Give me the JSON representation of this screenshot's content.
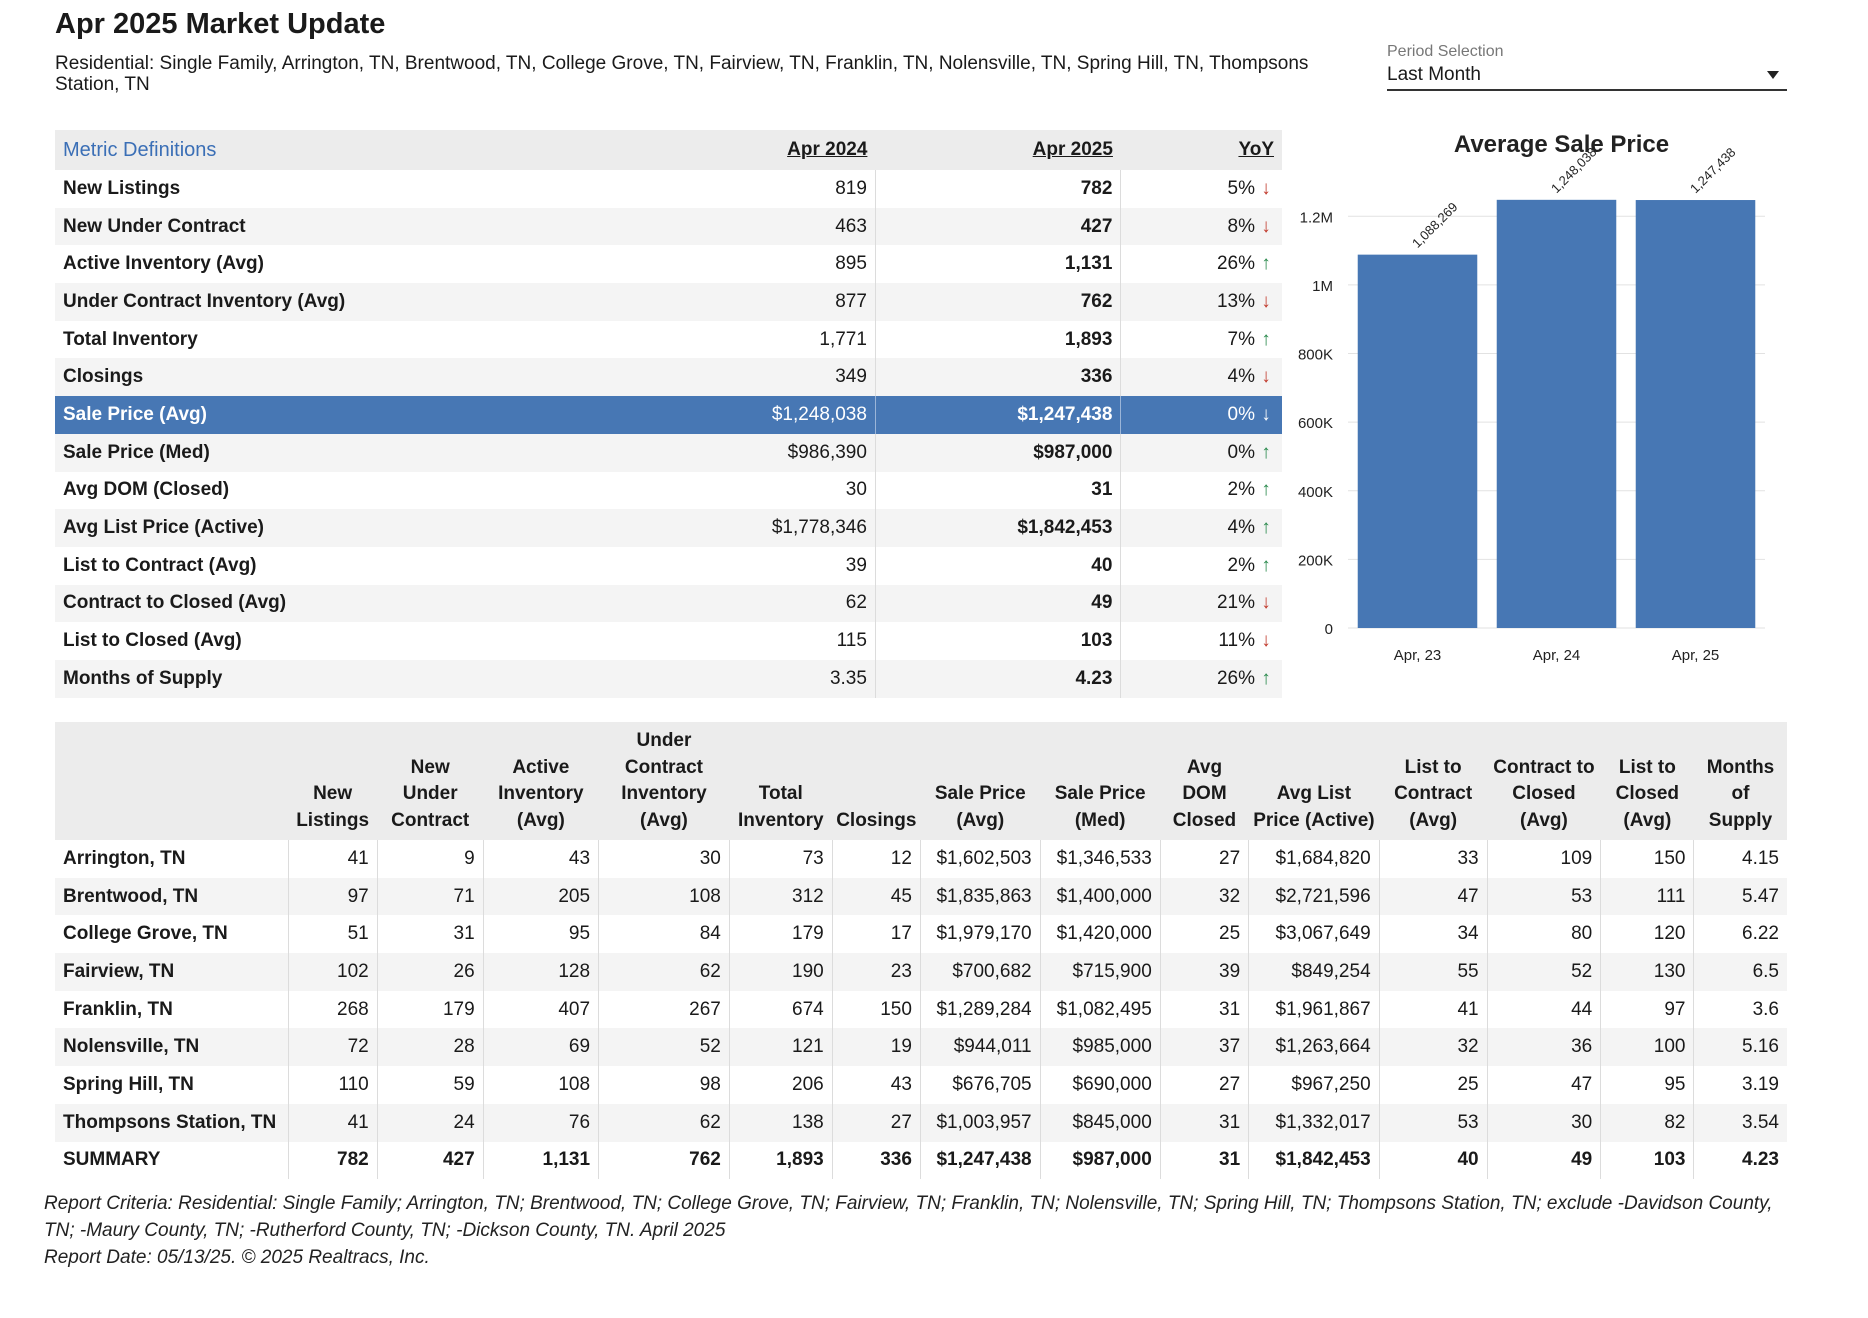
{
  "header": {
    "title": "Apr 2025 Market Update",
    "subtitle": "Residential: Single Family, Arrington, TN, Brentwood, TN, College Grove, TN, Fairview, TN, Franklin, TN, Nolensville, TN, Spring Hill, TN, Thompsons Station, TN"
  },
  "period": {
    "label": "Period Selection",
    "value": "Last Month"
  },
  "metrics": {
    "definitions_link": "Metric Definitions",
    "col_prev": "Apr 2024",
    "col_curr": "Apr 2025",
    "col_yoy": "YoY",
    "rows": [
      {
        "label": "New Listings",
        "prev": "819",
        "curr": "782",
        "yoy": "5%",
        "dir": "down"
      },
      {
        "label": "New Under Contract",
        "prev": "463",
        "curr": "427",
        "yoy": "8%",
        "dir": "down"
      },
      {
        "label": "Active Inventory (Avg)",
        "prev": "895",
        "curr": "1,131",
        "yoy": "26%",
        "dir": "up"
      },
      {
        "label": "Under Contract Inventory (Avg)",
        "prev": "877",
        "curr": "762",
        "yoy": "13%",
        "dir": "down"
      },
      {
        "label": "Total Inventory",
        "prev": "1,771",
        "curr": "1,893",
        "yoy": "7%",
        "dir": "up"
      },
      {
        "label": "Closings",
        "prev": "349",
        "curr": "336",
        "yoy": "4%",
        "dir": "down"
      },
      {
        "label": "Sale Price (Avg)",
        "prev": "$1,248,038",
        "curr": "$1,247,438",
        "yoy": "0%",
        "dir": "down",
        "highlight": true
      },
      {
        "label": "Sale Price (Med)",
        "prev": "$986,390",
        "curr": "$987,000",
        "yoy": "0%",
        "dir": "up"
      },
      {
        "label": "Avg DOM (Closed)",
        "prev": "30",
        "curr": "31",
        "yoy": "2%",
        "dir": "up"
      },
      {
        "label": "Avg List Price (Active)",
        "prev": "$1,778,346",
        "curr": "$1,842,453",
        "yoy": "4%",
        "dir": "up"
      },
      {
        "label": "List to Contract (Avg)",
        "prev": "39",
        "curr": "40",
        "yoy": "2%",
        "dir": "up"
      },
      {
        "label": "Contract to Closed (Avg)",
        "prev": "62",
        "curr": "49",
        "yoy": "21%",
        "dir": "down"
      },
      {
        "label": "List to Closed (Avg)",
        "prev": "115",
        "curr": "103",
        "yoy": "11%",
        "dir": "down"
      },
      {
        "label": "Months of Supply",
        "prev": "3.35",
        "curr": "4.23",
        "yoy": "26%",
        "dir": "up"
      }
    ]
  },
  "chart_data": {
    "type": "bar",
    "title": "Average Sale Price",
    "categories": [
      "Apr, 23",
      "Apr, 24",
      "Apr, 25"
    ],
    "values": [
      1088269,
      1248038,
      1247438
    ],
    "data_labels": [
      "1,088,269",
      "1,248,038",
      "1,247,438"
    ],
    "ylim": [
      0,
      1300000
    ],
    "yticks": [
      0,
      200000,
      400000,
      600000,
      800000,
      1000000,
      1200000
    ],
    "ytick_labels": [
      "0",
      "200K",
      "400K",
      "600K",
      "800K",
      "1M",
      "1.2M"
    ],
    "bar_color": "#4777b4",
    "grid": true
  },
  "areas": {
    "columns": [
      "",
      "New Listings",
      "New Under Contract",
      "Active Inventory (Avg)",
      "Under Contract Inventory (Avg)",
      "Total Inventory",
      "Closings",
      "Sale Price (Avg)",
      "Sale Price (Med)",
      "Avg DOM Closed",
      "Avg List Price (Active)",
      "List to Contract (Avg)",
      "Contract to Closed (Avg)",
      "List to Closed (Avg)",
      "Months of Supply"
    ],
    "rows": [
      [
        "Arrington, TN",
        "41",
        "9",
        "43",
        "30",
        "73",
        "12",
        "$1,602,503",
        "$1,346,533",
        "27",
        "$1,684,820",
        "33",
        "109",
        "150",
        "4.15"
      ],
      [
        "Brentwood, TN",
        "97",
        "71",
        "205",
        "108",
        "312",
        "45",
        "$1,835,863",
        "$1,400,000",
        "32",
        "$2,721,596",
        "47",
        "53",
        "111",
        "5.47"
      ],
      [
        "College Grove, TN",
        "51",
        "31",
        "95",
        "84",
        "179",
        "17",
        "$1,979,170",
        "$1,420,000",
        "25",
        "$3,067,649",
        "34",
        "80",
        "120",
        "6.22"
      ],
      [
        "Fairview, TN",
        "102",
        "26",
        "128",
        "62",
        "190",
        "23",
        "$700,682",
        "$715,900",
        "39",
        "$849,254",
        "55",
        "52",
        "130",
        "6.5"
      ],
      [
        "Franklin, TN",
        "268",
        "179",
        "407",
        "267",
        "674",
        "150",
        "$1,289,284",
        "$1,082,495",
        "31",
        "$1,961,867",
        "41",
        "44",
        "97",
        "3.6"
      ],
      [
        "Nolensville, TN",
        "72",
        "28",
        "69",
        "52",
        "121",
        "19",
        "$944,011",
        "$985,000",
        "37",
        "$1,263,664",
        "32",
        "36",
        "100",
        "5.16"
      ],
      [
        "Spring Hill, TN",
        "110",
        "59",
        "108",
        "98",
        "206",
        "43",
        "$676,705",
        "$690,000",
        "27",
        "$967,250",
        "25",
        "47",
        "95",
        "3.19"
      ],
      [
        "Thompsons Station, TN",
        "41",
        "24",
        "76",
        "62",
        "138",
        "27",
        "$1,003,957",
        "$845,000",
        "31",
        "$1,332,017",
        "53",
        "30",
        "82",
        "3.54"
      ],
      [
        "SUMMARY",
        "782",
        "427",
        "1,131",
        "762",
        "1,893",
        "336",
        "$1,247,438",
        "$987,000",
        "31",
        "$1,842,453",
        "40",
        "49",
        "103",
        "4.23"
      ]
    ]
  },
  "footer": {
    "criteria": "Report Criteria: Residential: Single Family; Arrington, TN; Brentwood, TN; College Grove, TN; Fairview, TN; Franklin, TN; Nolensville, TN; Spring Hill, TN; Thompsons Station, TN; exclude -Davidson County, TN; -Maury County, TN; -Rutherford County, TN; -Dickson County, TN. April 2025",
    "report_date": "Report Date: 05/13/25. © 2025 Realtracs, Inc."
  }
}
